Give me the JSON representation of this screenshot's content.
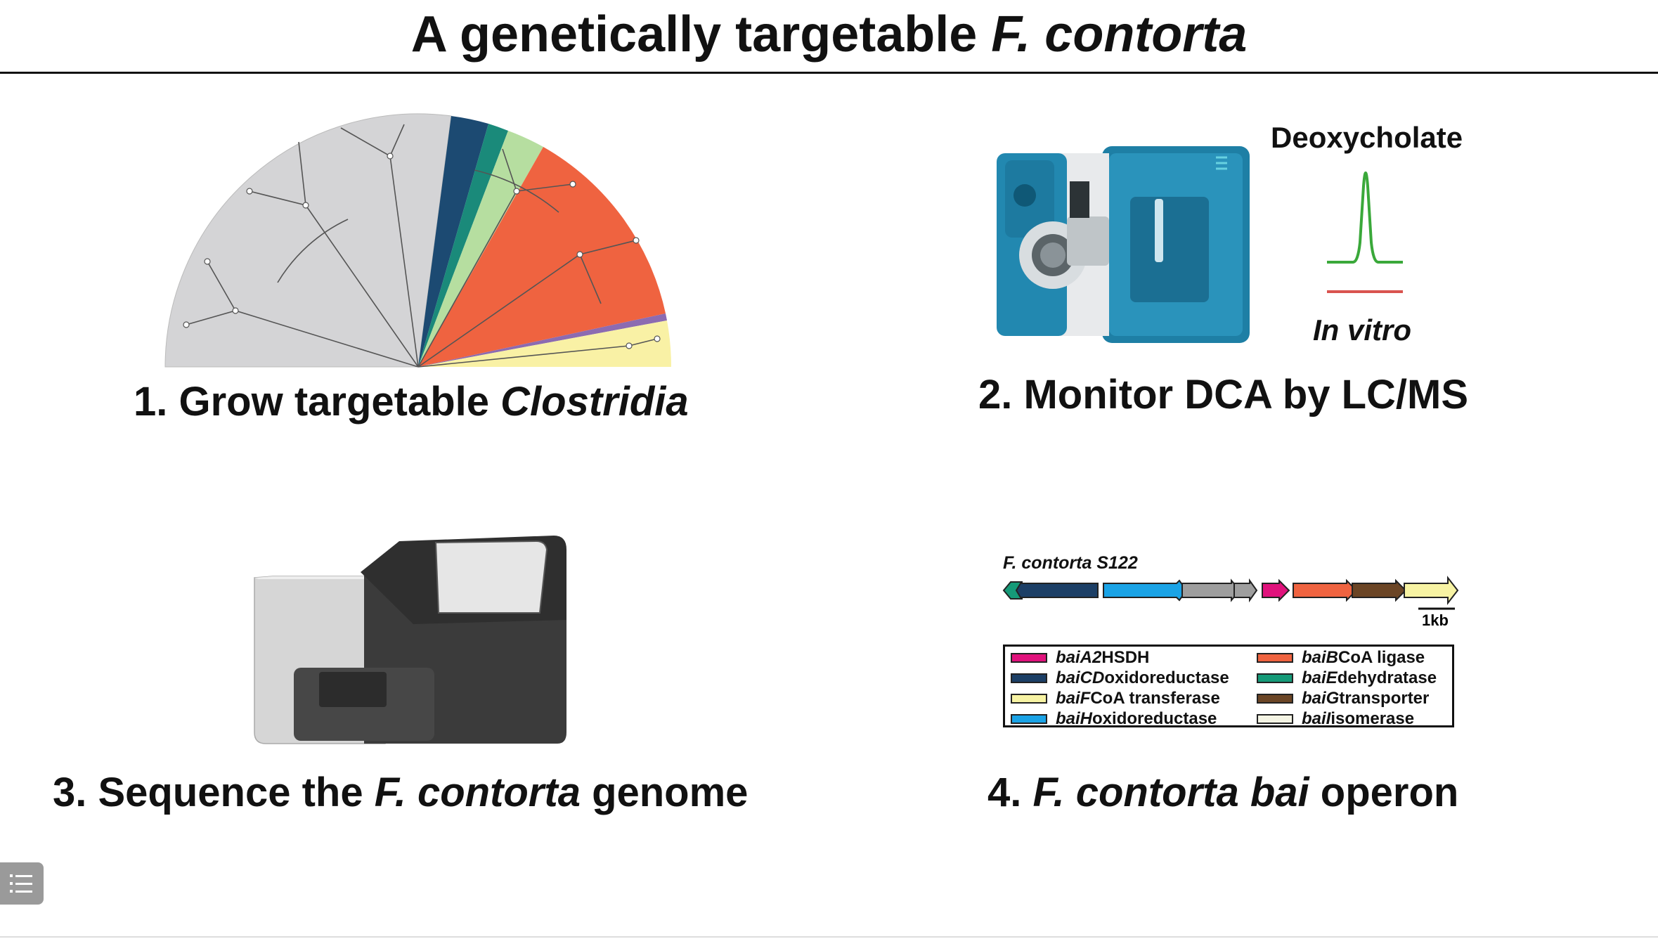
{
  "title": {
    "main": "A genetically targetable ",
    "italic": "F. contorta"
  },
  "panel1": {
    "caption_prefix": "1. Grow targetable ",
    "caption_italic": "Clostridia"
  },
  "panel2": {
    "caption": "2. Monitor DCA by LC/MS",
    "peak_label": "Deoxycholate",
    "condition_label": "In vitro",
    "trace_color": "#3aa83a",
    "baseline_color": "#d9534f"
  },
  "panel3": {
    "caption_prefix": "3. Sequence the ",
    "caption_italic": "F. contorta",
    "caption_suffix": " genome"
  },
  "panel4": {
    "caption_prefix": "4. ",
    "caption_italic": "F. contorta bai",
    "caption_suffix": " operon",
    "strain_label": "F. contorta S122",
    "scale_label": "1kb",
    "legend": [
      {
        "gene": "baiA2",
        "desc": " HSDH",
        "color": "#e0127c"
      },
      {
        "gene": "baiCD",
        "desc": " oxidoreductase",
        "color": "#1c3f66"
      },
      {
        "gene": "baiF",
        "desc": " CoA transferase",
        "color": "#f7f3a3"
      },
      {
        "gene": "baiH",
        "desc": " oxidoreductase",
        "color": "#1aa3e6"
      },
      {
        "gene": "baiB",
        "desc": " CoA ligase",
        "color": "#ef6340"
      },
      {
        "gene": "baiE",
        "desc": " dehydratase",
        "color": "#159a78"
      },
      {
        "gene": "baiG",
        "desc": " transporter",
        "color": "#6b4525"
      },
      {
        "gene": "baiI",
        "desc": " isomerase",
        "color": "#f4f4e4"
      }
    ]
  },
  "ui": {
    "menu_icon": "list-menu-icon"
  }
}
